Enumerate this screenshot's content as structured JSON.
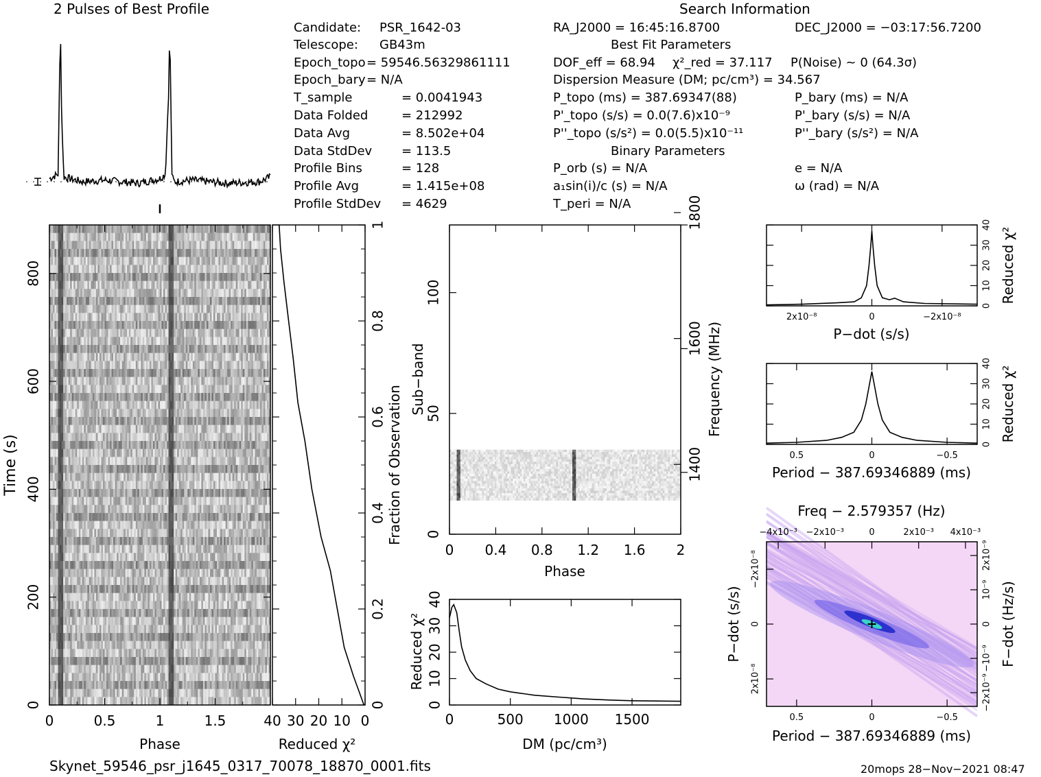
{
  "profile_title": "2 Pulses of Best Profile",
  "search_info_title": "Search Information",
  "best_fit_title": "Best Fit Parameters",
  "binary_title": "Binary Parameters",
  "info_col1": [
    {
      "label": "Candidate:",
      "value": "PSR_1642-03"
    },
    {
      "label": "Telescope:",
      "value": "GB43m"
    },
    {
      "label": "Epoch_topo",
      "value": "= 59546.56329861111"
    },
    {
      "label": "Epoch_bary",
      "value": "= N/A"
    },
    {
      "label": "T_sample",
      "value": "=   0.0041943"
    },
    {
      "label": "Data Folded",
      "value": "=   212992"
    },
    {
      "label": "Data Avg",
      "value": "=   8.502e+04"
    },
    {
      "label": "Data StdDev",
      "value": "=   113.5"
    },
    {
      "label": "Profile Bins",
      "value": "=   128"
    },
    {
      "label": "Profile Avg",
      "value": "=   1.415e+08"
    },
    {
      "label": "Profile StdDev",
      "value": "=   4629"
    }
  ],
  "info_col2": {
    "ra": "RA_J2000 = 16:45:16.8700",
    "dec": "DEC_J2000 = −03:17:56.7200",
    "dof": "DOF_eff = 68.94",
    "chi2": "χ²_red = 37.117",
    "pnoise": "P(Noise) ~ 0    (64.3σ)",
    "dm": "Dispersion Measure (DM; pc/cm³) = 34.567",
    "ptopo": "P_topo (ms) =  387.69347(88)",
    "pbary": "P_bary (ms) = N/A",
    "pdtopo": "P'_topo (s/s) = 0.0(7.6)x10⁻⁹",
    "pdbary": "P'_bary (s/s) = N/A",
    "pddtopo": "P''_topo (s/s²) = 0.0(5.5)x10⁻¹¹",
    "pddbary": "P''_bary (s/s²) = N/A",
    "porb": "P_orb (s) = N/A",
    "ecc": "e = N/A",
    "a1": "a₁sin(i)/c (s) = N/A",
    "omega": "ω (rad) = N/A",
    "tperi": "T_peri = N/A"
  },
  "footer_file": "Skynet_59546_psr_j1645_0317_70078_18870_0001.fits",
  "footer_stamp": "20mops 28−Nov−2021 08:47",
  "chart_data": [
    {
      "type": "line",
      "name": "profile",
      "title": "2 Pulses of Best Profile",
      "x": [
        0.0,
        0.08,
        0.09,
        0.1,
        0.11,
        0.13,
        0.3,
        0.5,
        0.8,
        1.0,
        1.05,
        1.08,
        1.09,
        1.1,
        1.11,
        1.13,
        1.3,
        1.6,
        1.9,
        2.0
      ],
      "values": [
        0.02,
        0.05,
        0.6,
        1.0,
        0.45,
        0.03,
        0.0,
        0.01,
        -0.01,
        0.02,
        0.05,
        0.6,
        1.0,
        0.45,
        0.03,
        0.0,
        0.01,
        -0.01,
        0.0,
        0.03
      ],
      "xlim": [
        0,
        2
      ]
    },
    {
      "type": "heatmap",
      "name": "time-phase",
      "xlabel": "Phase",
      "ylabel": "Time (s)",
      "xlim": [
        0,
        2
      ],
      "ylim": [
        0,
        890
      ],
      "x_ticks": [
        "0",
        "0.5",
        "1",
        "1.5"
      ],
      "y_ticks": [
        "0",
        "200",
        "400",
        "600",
        "800"
      ],
      "pulse_phases": [
        0.1,
        1.1
      ]
    },
    {
      "type": "line",
      "name": "chi2-vs-fraction",
      "xlabel": "Reduced χ²",
      "ylabel": "Fraction of Observation",
      "xlim": [
        40,
        0
      ],
      "ylim": [
        0,
        1
      ],
      "x_ticks": [
        "40",
        "30",
        "20",
        "10",
        "0"
      ],
      "y_ticks": [
        "0",
        "0.2",
        "0.4",
        "0.6",
        "0.8",
        "1"
      ],
      "points": [
        [
          0.5,
          0.0
        ],
        [
          2,
          0.02
        ],
        [
          5,
          0.06
        ],
        [
          9,
          0.12
        ],
        [
          12,
          0.2
        ],
        [
          15,
          0.28
        ],
        [
          19,
          0.35
        ],
        [
          23,
          0.45
        ],
        [
          26,
          0.55
        ],
        [
          29,
          0.63
        ],
        [
          31,
          0.72
        ],
        [
          33,
          0.8
        ],
        [
          35,
          0.88
        ],
        [
          36.5,
          0.95
        ],
        [
          37.1,
          1.0
        ]
      ]
    },
    {
      "type": "heatmap",
      "name": "subband-phase",
      "xlabel": "Phase",
      "ylabel": "Sub−band",
      "y2label": "Frequency (MHz)",
      "xlim": [
        0,
        2
      ],
      "ylim": [
        0,
        128
      ],
      "x_ticks": [
        "0",
        "0.4",
        "0.8",
        "1.2",
        "1.6",
        "2"
      ],
      "y_ticks": [
        "0",
        "50",
        "100"
      ],
      "y2_ticks": [
        "1400",
        "1600",
        "1800"
      ],
      "band_rows": [
        14,
        35
      ],
      "pulse_phases": [
        0.08,
        1.08
      ]
    },
    {
      "type": "line",
      "name": "chi2-vs-dm",
      "xlabel": "DM (pc/cm³)",
      "ylabel": "Reduced χ²",
      "xlim": [
        0,
        1900
      ],
      "ylim": [
        0,
        40
      ],
      "x_ticks": [
        "0",
        "500",
        "1000",
        "1500"
      ],
      "y_ticks": [
        "0",
        "10",
        "20",
        "30",
        "40"
      ],
      "points": [
        [
          0,
          33
        ],
        [
          20,
          37
        ],
        [
          35,
          38
        ],
        [
          60,
          35
        ],
        [
          80,
          28
        ],
        [
          100,
          22
        ],
        [
          130,
          17
        ],
        [
          170,
          13
        ],
        [
          220,
          10
        ],
        [
          300,
          8
        ],
        [
          400,
          6
        ],
        [
          500,
          5
        ],
        [
          700,
          3.7
        ],
        [
          900,
          3
        ],
        [
          1100,
          2.3
        ],
        [
          1300,
          1.9
        ],
        [
          1500,
          1.6
        ],
        [
          1700,
          1.5
        ],
        [
          1900,
          1.4
        ]
      ]
    },
    {
      "type": "line",
      "name": "chi2-vs-pdot",
      "xlabel": "P−dot (s/s)",
      "ylabel": "Reduced χ²",
      "xlim": [
        3e-08,
        -3e-08
      ],
      "ylim": [
        0,
        40
      ],
      "x_ticks": [
        "2x10⁻⁸",
        "0",
        "−2x10⁻⁸"
      ],
      "y_ticks": [
        "0",
        "10",
        "20",
        "30",
        "40"
      ],
      "points": [
        [
          3e-08,
          0.5
        ],
        [
          2e-08,
          0.8
        ],
        [
          1e-08,
          1.5
        ],
        [
          5e-09,
          2
        ],
        [
          3e-09,
          4
        ],
        [
          1.5e-09,
          10
        ],
        [
          8e-10,
          20
        ],
        [
          3e-10,
          30
        ],
        [
          0,
          37
        ],
        [
          -3e-10,
          30
        ],
        [
          -8e-10,
          20
        ],
        [
          -1.5e-09,
          10
        ],
        [
          -3e-09,
          4
        ],
        [
          -5e-09,
          3
        ],
        [
          -6.5e-09,
          3.8
        ],
        [
          -9e-09,
          2
        ],
        [
          -1.5e-08,
          1.2
        ],
        [
          -3e-08,
          0.8
        ]
      ]
    },
    {
      "type": "line",
      "name": "chi2-vs-period",
      "xlabel": "Period − 387.69346889 (ms)",
      "ylabel": "Reduced χ²",
      "xlim": [
        0.7,
        -0.7
      ],
      "ylim": [
        0,
        40
      ],
      "x_ticks": [
        "0.5",
        "0",
        "−0.5"
      ],
      "y_ticks": [
        "0",
        "10",
        "20",
        "30",
        "40"
      ],
      "points": [
        [
          0.7,
          0.6
        ],
        [
          0.5,
          1.0
        ],
        [
          0.3,
          2.0
        ],
        [
          0.2,
          3.5
        ],
        [
          0.12,
          6
        ],
        [
          0.07,
          12
        ],
        [
          0.04,
          20
        ],
        [
          0.02,
          28
        ],
        [
          0.0,
          36
        ],
        [
          -0.02,
          28
        ],
        [
          -0.04,
          20
        ],
        [
          -0.07,
          12
        ],
        [
          -0.12,
          6
        ],
        [
          -0.2,
          3.5
        ],
        [
          -0.3,
          2.0
        ],
        [
          -0.5,
          1.0
        ],
        [
          -0.7,
          0.6
        ]
      ]
    },
    {
      "type": "heatmap",
      "name": "period-pdot",
      "title": "Freq − 2.579357 (Hz)",
      "xlabel": "Period − 387.69346889 (ms)",
      "ylabel": "P−dot (s/s)",
      "y2label": "F−dot (Hz/s)",
      "xlim": [
        0.7,
        -0.7
      ],
      "ylim": [
        3e-08,
        -3e-08
      ],
      "x_ticks": [
        "0.5",
        "0",
        "−0.5"
      ],
      "top_ticks": [
        "−4x10⁻³",
        "−2x10⁻³",
        "0",
        "2x10⁻³",
        "4x10⁻³"
      ],
      "y_ticks": [
        "2x10⁻⁸",
        "0",
        "−2x10⁻⁸"
      ],
      "y2_ticks": [
        "2x10⁻⁹",
        "10⁻⁹",
        "0",
        "−10⁻⁹",
        "−2x10⁻⁹"
      ],
      "peak": [
        0.0,
        0.0
      ]
    }
  ]
}
